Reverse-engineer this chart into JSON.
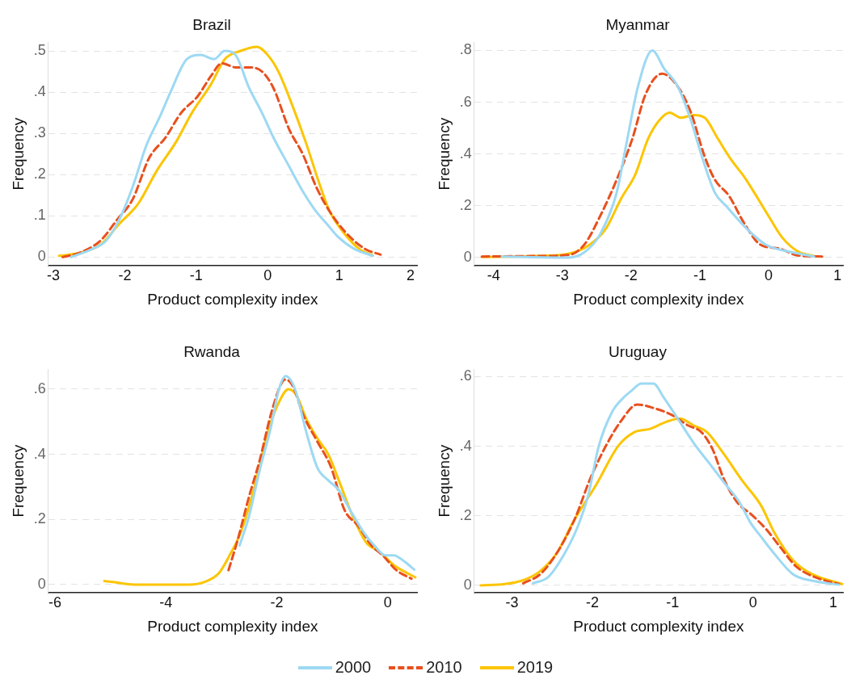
{
  "chart_data": [
    {
      "type": "line",
      "title": "Brazil",
      "xlabel": "Product complexity index",
      "ylabel": "Frequency",
      "xlim": [
        -3.07,
        2.09
      ],
      "xticks": [
        -3,
        -2,
        -1,
        0,
        1,
        2
      ],
      "ylim": [
        -0.02,
        0.52
      ],
      "yticks": [
        {
          "value": 0,
          "label": "0"
        },
        {
          "value": 0.1,
          "label": ".1"
        },
        {
          "value": 0.2,
          "label": ".2"
        },
        {
          "value": 0.3,
          "label": ".3"
        },
        {
          "value": 0.4,
          "label": ".4"
        },
        {
          "value": 0.5,
          "label": ".5"
        }
      ],
      "grid": "y",
      "marker": "none",
      "legend": "bottom",
      "series": [
        {
          "name": "2000",
          "color": "#9dd9f3",
          "line_style": "solid",
          "x": [
            -2.75,
            -2.45,
            -2.26,
            -2.08,
            -1.89,
            -1.7,
            -1.51,
            -1.36,
            -1.13,
            -0.94,
            -0.75,
            -0.6,
            -0.45,
            -0.26,
            -0.08,
            0.08,
            0.3,
            0.49,
            0.68,
            0.83,
            0.98,
            1.21,
            1.47
          ],
          "values": [
            0,
            0.02,
            0.04,
            0.09,
            0.17,
            0.27,
            0.34,
            0.4,
            0.48,
            0.49,
            0.48,
            0.5,
            0.49,
            0.41,
            0.35,
            0.29,
            0.22,
            0.16,
            0.11,
            0.08,
            0.05,
            0.02,
            0.003
          ]
        },
        {
          "name": "2010",
          "color": "#e8501e",
          "line_style": "dashed",
          "x": [
            -2.87,
            -2.64,
            -2.34,
            -2.11,
            -1.89,
            -1.66,
            -1.43,
            -1.21,
            -0.98,
            -0.79,
            -0.64,
            -0.45,
            -0.26,
            -0.08,
            0.08,
            0.3,
            0.49,
            0.68,
            0.87,
            1.09,
            1.36,
            1.58
          ],
          "values": [
            0,
            0.01,
            0.04,
            0.09,
            0.14,
            0.24,
            0.29,
            0.35,
            0.39,
            0.44,
            0.47,
            0.46,
            0.46,
            0.45,
            0.41,
            0.31,
            0.25,
            0.17,
            0.11,
            0.06,
            0.02,
            0.006
          ]
        },
        {
          "name": "2019",
          "color": "#fcc500",
          "line_style": "solid",
          "x": [
            -2.92,
            -2.64,
            -2.34,
            -2.08,
            -1.81,
            -1.55,
            -1.28,
            -1.06,
            -0.79,
            -0.6,
            -0.38,
            -0.15,
            0,
            0.15,
            0.34,
            0.53,
            0.72,
            0.87,
            1.06,
            1.28,
            1.47
          ],
          "values": [
            0.003,
            0.01,
            0.03,
            0.08,
            0.13,
            0.21,
            0.28,
            0.35,
            0.42,
            0.48,
            0.5,
            0.51,
            0.49,
            0.45,
            0.37,
            0.28,
            0.18,
            0.11,
            0.06,
            0.02,
            0.004
          ]
        }
      ]
    },
    {
      "type": "line",
      "title": "Myanmar",
      "xlabel": "Product complexity index",
      "ylabel": "Frequency",
      "xlim": [
        -4.28,
        1.08
      ],
      "xticks": [
        -4,
        -3,
        -2,
        -1,
        0,
        1
      ],
      "ylim": [
        -0.03,
        0.83
      ],
      "yticks": [
        {
          "value": 0,
          "label": "0"
        },
        {
          "value": 0.2,
          "label": ".2"
        },
        {
          "value": 0.4,
          "label": ".4"
        },
        {
          "value": 0.6,
          "label": ".6"
        },
        {
          "value": 0.8,
          "label": ".8"
        }
      ],
      "grid": "y",
      "marker": "none",
      "series": [
        {
          "name": "2000",
          "color": "#9dd9f3",
          "line_style": "solid",
          "x": [
            -3.88,
            -2.91,
            -2.68,
            -2.45,
            -2.21,
            -2.06,
            -1.9,
            -1.69,
            -1.52,
            -1.32,
            -1.13,
            -0.97,
            -0.78,
            -0.62,
            -0.35,
            -0.04,
            0.35,
            0.66
          ],
          "values": [
            0.004,
            0,
            0.02,
            0.09,
            0.25,
            0.45,
            0.66,
            0.8,
            0.73,
            0.66,
            0.53,
            0.39,
            0.25,
            0.2,
            0.12,
            0.05,
            0.02,
            0.004
          ]
        },
        {
          "name": "2010",
          "color": "#e8501e",
          "line_style": "dashed",
          "x": [
            -4.17,
            -3.38,
            -2.91,
            -2.68,
            -2.45,
            -2.21,
            -1.98,
            -1.79,
            -1.55,
            -1.32,
            -1.13,
            -0.93,
            -0.78,
            -0.58,
            -0.35,
            -0.12,
            0.15,
            0.43,
            0.81
          ],
          "values": [
            0.004,
            0.006,
            0.01,
            0.05,
            0.16,
            0.3,
            0.46,
            0.63,
            0.71,
            0.66,
            0.56,
            0.39,
            0.3,
            0.24,
            0.13,
            0.05,
            0.035,
            0.008,
            0.004
          ]
        },
        {
          "name": "2019",
          "color": "#fcc500",
          "line_style": "solid",
          "x": [
            -4.17,
            -3.38,
            -2.91,
            -2.6,
            -2.37,
            -2.14,
            -1.94,
            -1.75,
            -1.59,
            -1.44,
            -1.28,
            -1.09,
            -0.93,
            -0.74,
            -0.55,
            -0.35,
            -0.16,
            0,
            0.19,
            0.43,
            0.66
          ],
          "values": [
            0.002,
            0.006,
            0.015,
            0.05,
            0.11,
            0.23,
            0.32,
            0.46,
            0.53,
            0.56,
            0.54,
            0.55,
            0.54,
            0.46,
            0.38,
            0.31,
            0.23,
            0.16,
            0.08,
            0.023,
            0.006
          ]
        }
      ]
    },
    {
      "type": "line",
      "title": "Rwanda",
      "xlabel": "Product complexity index",
      "ylabel": "Frequency",
      "xlim": [
        -6.12,
        0.53
      ],
      "xticks": [
        -6,
        -4,
        -2,
        0
      ],
      "ylim": [
        -0.024,
        0.66
      ],
      "yticks": [
        {
          "value": 0,
          "label": "0"
        },
        {
          "value": 0.2,
          "label": ".2"
        },
        {
          "value": 0.4,
          "label": ".4"
        },
        {
          "value": 0.6,
          "label": ".6"
        }
      ],
      "grid": "y",
      "marker": "none",
      "series": [
        {
          "name": "2000",
          "color": "#9dd9f3",
          "line_style": "solid",
          "x": [
            -2.67,
            -2.5,
            -2.31,
            -2.11,
            -1.96,
            -1.84,
            -1.67,
            -1.47,
            -1.27,
            -1.07,
            -0.88,
            -0.68,
            -0.43,
            -0.24,
            -0.04,
            0.11,
            0.31,
            0.48
          ],
          "values": [
            0.12,
            0.21,
            0.35,
            0.48,
            0.6,
            0.64,
            0.6,
            0.47,
            0.36,
            0.32,
            0.29,
            0.23,
            0.16,
            0.12,
            0.09,
            0.09,
            0.07,
            0.046
          ]
        },
        {
          "name": "2010",
          "color": "#e8501e",
          "line_style": "dashed",
          "x": [
            -2.87,
            -2.7,
            -2.5,
            -2.31,
            -2.11,
            -1.91,
            -1.84,
            -1.71,
            -1.52,
            -1.27,
            -1.02,
            -0.78,
            -0.53,
            -0.29,
            -0.09,
            0.16,
            0.43
          ],
          "values": [
            0.044,
            0.14,
            0.27,
            0.38,
            0.52,
            0.62,
            0.63,
            0.61,
            0.52,
            0.44,
            0.36,
            0.23,
            0.18,
            0.12,
            0.09,
            0.044,
            0.018
          ]
        },
        {
          "name": "2019",
          "color": "#fcc500",
          "line_style": "solid",
          "x": [
            -5.11,
            -4.92,
            -4.57,
            -3.59,
            -3.29,
            -3.04,
            -2.85,
            -2.65,
            -2.4,
            -2.16,
            -1.96,
            -1.79,
            -1.64,
            -1.47,
            -1.27,
            -1.07,
            -0.88,
            -0.63,
            -0.39,
            -0.14,
            0.11,
            0.5
          ],
          "values": [
            0.011,
            0.007,
            0,
            0,
            0.009,
            0.036,
            0.09,
            0.16,
            0.3,
            0.47,
            0.56,
            0.6,
            0.58,
            0.51,
            0.45,
            0.4,
            0.32,
            0.21,
            0.13,
            0.1,
            0.06,
            0.022
          ]
        }
      ]
    },
    {
      "type": "line",
      "title": "Uruguay",
      "xlabel": "Product complexity index",
      "ylabel": "Frequency",
      "xlim": [
        -3.47,
        1.12
      ],
      "xticks": [
        -3,
        -2,
        -1,
        0,
        1
      ],
      "ylim": [
        -0.02,
        0.62
      ],
      "yticks": [
        {
          "value": 0,
          "label": "0"
        },
        {
          "value": 0.2,
          "label": ".2"
        },
        {
          "value": 0.4,
          "label": ".4"
        },
        {
          "value": 0.6,
          "label": ".6"
        }
      ],
      "grid": "y",
      "marker": "none",
      "series": [
        {
          "name": "2000",
          "color": "#9dd9f3",
          "line_style": "solid",
          "x": [
            -2.74,
            -2.55,
            -2.35,
            -2.18,
            -2.05,
            -1.92,
            -1.75,
            -1.61,
            -1.51,
            -1.39,
            -1.24,
            -1.11,
            -0.91,
            -0.74,
            -0.54,
            -0.34,
            -0.17,
            -0.03,
            0.1,
            0.27,
            0.5,
            0.77,
            1.07
          ],
          "values": [
            0.006,
            0.024,
            0.09,
            0.17,
            0.26,
            0.4,
            0.5,
            0.54,
            0.56,
            0.58,
            0.58,
            0.54,
            0.47,
            0.41,
            0.35,
            0.29,
            0.24,
            0.18,
            0.14,
            0.09,
            0.032,
            0.012,
            0.002
          ]
        },
        {
          "name": "2010",
          "color": "#e8501e",
          "line_style": "dashed",
          "x": [
            -2.86,
            -2.65,
            -2.45,
            -2.22,
            -2.02,
            -1.81,
            -1.65,
            -1.44,
            -1.24,
            -1.01,
            -0.81,
            -0.64,
            -0.5,
            -0.37,
            -0.2,
            0,
            0.17,
            0.34,
            0.54,
            0.77,
            1.07
          ],
          "values": [
            0.006,
            0.032,
            0.09,
            0.19,
            0.31,
            0.41,
            0.47,
            0.52,
            0.51,
            0.49,
            0.46,
            0.44,
            0.39,
            0.31,
            0.24,
            0.2,
            0.16,
            0.11,
            0.054,
            0.024,
            0.004
          ]
        },
        {
          "name": "2019",
          "color": "#fcc500",
          "line_style": "solid",
          "x": [
            -3.39,
            -3.09,
            -2.86,
            -2.65,
            -2.45,
            -2.22,
            -1.95,
            -1.68,
            -1.48,
            -1.28,
            -1.08,
            -0.91,
            -0.74,
            -0.57,
            -0.37,
            -0.13,
            0.1,
            0.27,
            0.5,
            0.74,
            1.11
          ],
          "values": [
            0,
            0.004,
            0.015,
            0.041,
            0.09,
            0.19,
            0.29,
            0.4,
            0.44,
            0.45,
            0.47,
            0.48,
            0.46,
            0.44,
            0.38,
            0.3,
            0.23,
            0.15,
            0.072,
            0.032,
            0.004
          ]
        }
      ]
    }
  ]
}
